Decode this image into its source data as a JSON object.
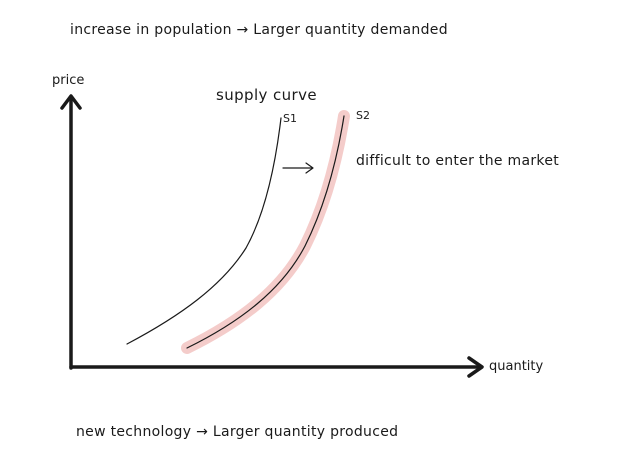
{
  "notes": {
    "top": "increase in population → Larger quantity demanded",
    "bottom": "new technology → Larger quantity produced"
  },
  "axes": {
    "y_label": "price",
    "x_label": "quantity"
  },
  "curves": {
    "title": "supply curve",
    "s1_label": "S1",
    "s2_label": "S2",
    "shift_note": "difficult to enter the market"
  },
  "colors": {
    "ink": "#1a1a1a",
    "highlight": "#f3c7c4"
  }
}
